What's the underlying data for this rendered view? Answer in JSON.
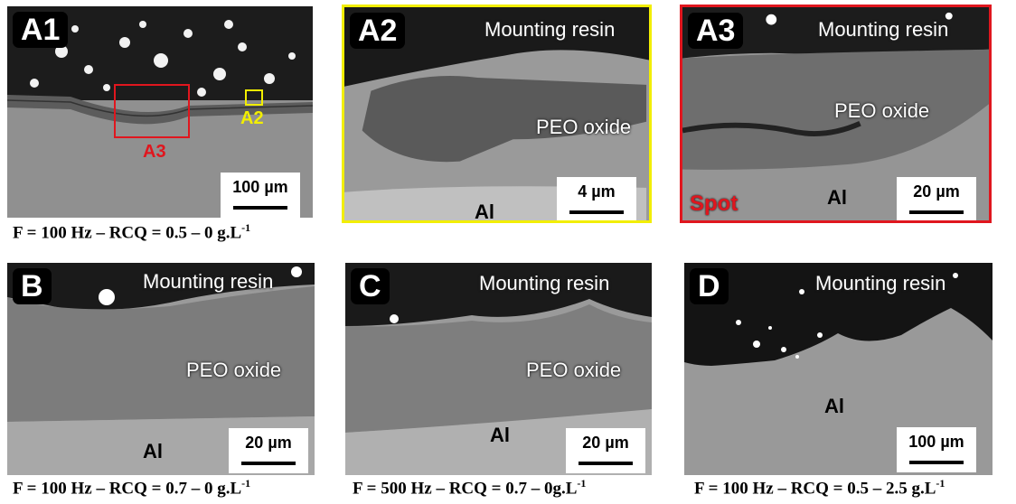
{
  "panels": {
    "a1": {
      "tag": "A1",
      "scale": "100 µm",
      "roi_a2": "A2",
      "roi_a3": "A3",
      "roi_a2_color": "#f2ee00",
      "roi_a3_color": "#e0161e"
    },
    "a2": {
      "tag": "A2",
      "resin": "Mounting resin",
      "oxide": "PEO oxide",
      "metal": "Al",
      "scale": "4 µm",
      "border_color": "#f2ee00"
    },
    "a3": {
      "tag": "A3",
      "resin": "Mounting resin",
      "oxide": "PEO oxide",
      "metal": "Al",
      "scale": "20 µm",
      "spot": "Spot",
      "border_color": "#e0161e"
    },
    "b": {
      "tag": "B",
      "resin": "Mounting resin",
      "oxide": "PEO oxide",
      "metal": "Al",
      "scale": "20 µm"
    },
    "c": {
      "tag": "C",
      "resin": "Mounting resin",
      "oxide": "PEO oxide",
      "metal": "Al",
      "scale": "20 µm"
    },
    "d": {
      "tag": "D",
      "resin": "Mounting resin",
      "metal": "Al",
      "scale": "100 µm"
    }
  },
  "captions": {
    "a1": {
      "main": "F = 100 Hz – RCQ = 0.5 – 0 g.L",
      "sup": "-1"
    },
    "b": {
      "main": "F = 100 Hz – RCQ = 0.7 – 0 g.L",
      "sup": "-1"
    },
    "c": {
      "main": "F = 500 Hz – RCQ = 0.7 – 0g.L",
      "sup": "-1"
    },
    "d": {
      "main": "F = 100 Hz – RCQ = 0.5 – 2.5 g.L",
      "sup": "-1"
    }
  }
}
